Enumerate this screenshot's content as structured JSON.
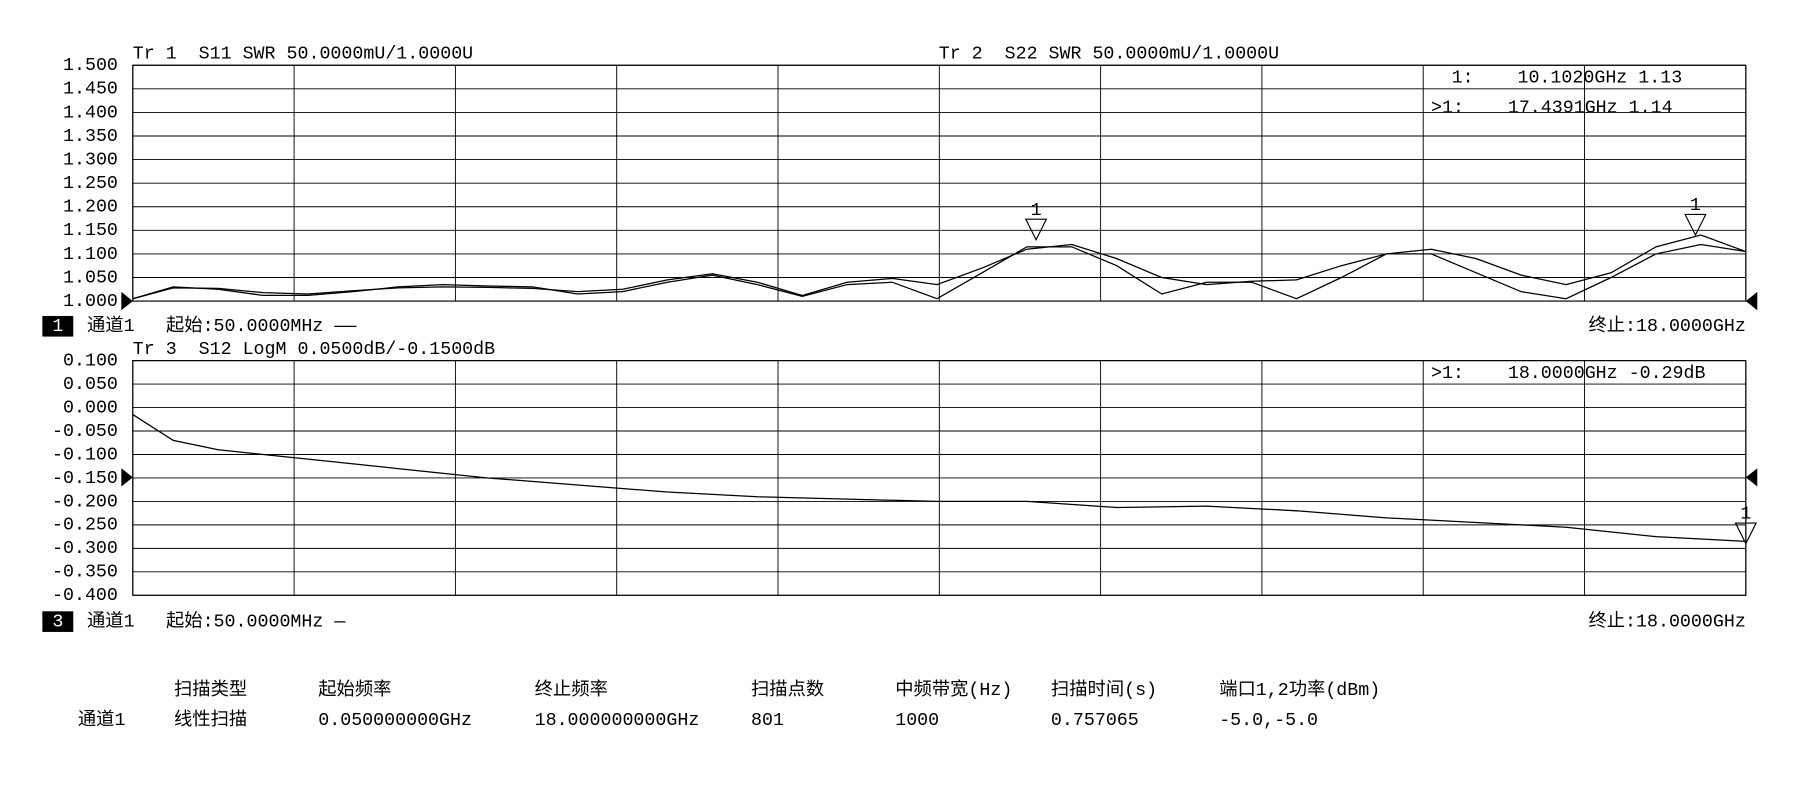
{
  "chart_data": [
    {
      "type": "line",
      "x": [
        0.05,
        0.5,
        1.0,
        1.5,
        2.0,
        2.5,
        3.0,
        3.5,
        4.0,
        4.5,
        5.0,
        5.5,
        6.0,
        6.5,
        7.0,
        7.5,
        8.0,
        8.5,
        9.0,
        9.5,
        10.0,
        10.5,
        11.0,
        11.5,
        12.0,
        12.5,
        13.0,
        13.5,
        14.0,
        14.5,
        15.0,
        15.5,
        16.0,
        16.5,
        17.0,
        17.5,
        18.0
      ],
      "series": [
        {
          "name": "Tr 1  S11 SWR 50.0000mU/1.0000U",
          "color": "#000000",
          "values": [
            1.005,
            1.028,
            1.027,
            1.018,
            1.015,
            1.022,
            1.028,
            1.03,
            1.029,
            1.027,
            1.02,
            1.025,
            1.045,
            1.058,
            1.04,
            1.012,
            1.04,
            1.048,
            1.035,
            1.07,
            1.11,
            1.12,
            1.09,
            1.05,
            1.035,
            1.042,
            1.045,
            1.075,
            1.1,
            1.11,
            1.09,
            1.055,
            1.035,
            1.06,
            1.115,
            1.14,
            1.105
          ]
        },
        {
          "name": "Tr 2  S22 SWR 50.0000mU/1.0000U",
          "color": "#000000",
          "values": [
            1.005,
            1.03,
            1.025,
            1.012,
            1.012,
            1.02,
            1.03,
            1.035,
            1.032,
            1.03,
            1.015,
            1.02,
            1.04,
            1.055,
            1.035,
            1.01,
            1.035,
            1.04,
            1.005,
            1.06,
            1.115,
            1.115,
            1.075,
            1.015,
            1.04,
            1.04,
            1.005,
            1.05,
            1.1,
            1.1,
            1.06,
            1.02,
            1.005,
            1.05,
            1.1,
            1.12,
            1.105
          ]
        }
      ],
      "xlim": [
        0.05,
        18
      ],
      "ylim": [
        1.0,
        1.5
      ],
      "yticks": [
        {
          "value": 1.5,
          "label": "1.500"
        },
        {
          "value": 1.45,
          "label": "1.450"
        },
        {
          "value": 1.4,
          "label": "1.400"
        },
        {
          "value": 1.35,
          "label": "1.350"
        },
        {
          "value": 1.3,
          "label": "1.300"
        },
        {
          "value": 1.25,
          "label": "1.250"
        },
        {
          "value": 1.2,
          "label": "1.200"
        },
        {
          "value": 1.15,
          "label": "1.150"
        },
        {
          "value": 1.1,
          "label": "1.100"
        },
        {
          "value": 1.05,
          "label": "1.050"
        },
        {
          "value": 1.0,
          "label": "1.000"
        }
      ],
      "grid": true,
      "markers": [
        {
          "label": "1",
          "x": 10.102,
          "y": 1.13
        },
        {
          "label": "1",
          "x": 17.4391,
          "y": 1.14
        }
      ],
      "marker_readouts": [
        "1:    10.1020GHz 1.13",
        ">1:    17.4391GHz 1.14"
      ]
    },
    {
      "type": "line",
      "x": [
        0.05,
        0.5,
        1.0,
        1.5,
        2.0,
        3.0,
        4.0,
        5.0,
        6.0,
        7.0,
        8.0,
        9.0,
        10.0,
        11.0,
        12.0,
        13.0,
        14.0,
        15.0,
        16.0,
        17.0,
        18.0
      ],
      "series": [
        {
          "name": "Tr 3  S12 LogM 0.0500dB/-0.1500dB",
          "color": "#000000",
          "values": [
            -0.015,
            -0.07,
            -0.09,
            -0.1,
            -0.11,
            -0.13,
            -0.15,
            -0.165,
            -0.18,
            -0.19,
            -0.195,
            -0.2,
            -0.2,
            -0.213,
            -0.21,
            -0.22,
            -0.235,
            -0.245,
            -0.255,
            -0.275,
            -0.285
          ]
        }
      ],
      "xlim": [
        0.05,
        18
      ],
      "ylim": [
        -0.4,
        0.1
      ],
      "yticks": [
        {
          "value": 0.1,
          "label": "0.100"
        },
        {
          "value": 0.05,
          "label": "0.050"
        },
        {
          "value": 0.0,
          "label": "0.000"
        },
        {
          "value": -0.05,
          "label": "-0.050"
        },
        {
          "value": -0.1,
          "label": "-0.100"
        },
        {
          "value": -0.15,
          "label": "-0.150"
        },
        {
          "value": -0.2,
          "label": "-0.200"
        },
        {
          "value": -0.25,
          "label": "-0.250"
        },
        {
          "value": -0.3,
          "label": "-0.300"
        },
        {
          "value": -0.35,
          "label": "-0.350"
        },
        {
          "value": -0.4,
          "label": "-0.400"
        }
      ],
      "grid": true,
      "markers": [
        {
          "label": "1",
          "x": 18.0,
          "y": -0.29
        }
      ],
      "marker_readouts": [
        ">1:    18.0000GHz -0.29dB"
      ]
    }
  ],
  "channel_bars": [
    {
      "number": "1",
      "channel": "通道1",
      "start": "起始:50.0000MHz ——",
      "stop": "终止:18.0000GHz"
    },
    {
      "number": "3",
      "channel": "通道1",
      "start": "起始:50.0000MHz —",
      "stop": "终止:18.0000GHz"
    }
  ],
  "sweep_table": {
    "headers": [
      "扫描类型",
      "起始频率",
      "终止频率",
      "扫描点数",
      "中频带宽(Hz)",
      "扫描时间(s)",
      "端口1,2功率(dBm)"
    ],
    "row_label": "通道1",
    "row": [
      "线性扫描",
      "0.050000000GHz",
      "18.000000000GHz",
      "801",
      "1000",
      "0.757065",
      "-5.0,-5.0"
    ]
  }
}
